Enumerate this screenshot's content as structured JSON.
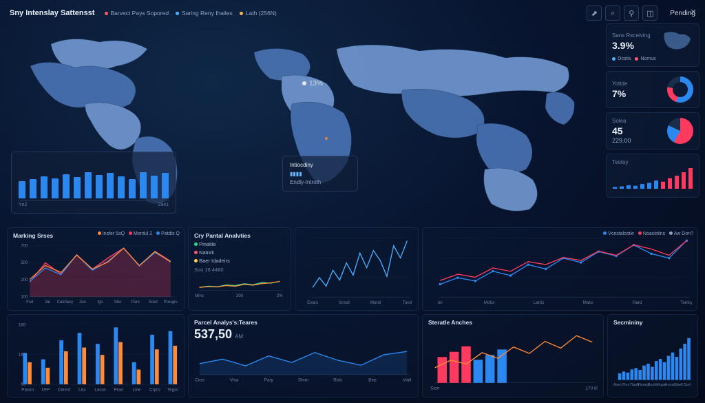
{
  "header": {
    "title": "Sny Intenslay Sattensst",
    "pills": [
      {
        "color": "#ff5a6e",
        "label": "Barvect Pays Sopored"
      },
      {
        "color": "#4bb0ff",
        "label": "Saring Reny Ihalles"
      },
      {
        "color": "#ffb347",
        "label": "Lath (256N)"
      }
    ]
  },
  "top_icons": [
    "⬈",
    "⌕",
    "⚲",
    "◫"
  ],
  "side_header": "Pending",
  "side_cards": [
    {
      "h": "Sans Receiving",
      "v": "3.9%",
      "tags": [
        {
          "c": "#4bb0ff",
          "t": "Ocstis"
        },
        {
          "c": "#ff5a6e",
          "t": "Nomus"
        }
      ],
      "mini_map": true
    },
    {
      "h": "Yottde",
      "v": "7%",
      "donut": {
        "c1": "#2b88f0",
        "a1": "55%",
        "c2": "#ff3a5e",
        "a2": "78%",
        "c3": "#1a2d4a"
      },
      "ring": true
    },
    {
      "h": "Solea",
      "v": "45",
      "v2": "229.00",
      "donut": {
        "c1": "#ff3a5e",
        "a1": "58%",
        "c2": "#2b88f0",
        "a2": "82%",
        "c3": "#1a2d4a"
      }
    },
    {
      "h": "Teotoy",
      "v": "",
      "spark_colors": [
        "#ff3a5e",
        "#2b88f0"
      ],
      "spark": [
        3,
        4,
        6,
        5,
        8,
        10,
        14,
        12,
        18,
        22,
        28,
        35
      ]
    }
  ],
  "floating_bar": {
    "values": [
      42,
      48,
      55,
      50,
      60,
      52,
      65,
      58,
      62,
      55,
      48,
      64,
      56,
      62
    ],
    "color": "#2b88f0",
    "labels": [
      "Yn2",
      "",
      "",
      "",
      "",
      "",
      "",
      "",
      "",
      "",
      "",
      "",
      "",
      "2941"
    ]
  },
  "ind_card": {
    "title": "Intiocdiny",
    "rows": [
      {
        "l": "Endly-Introth",
        "c": "#4bb0ff"
      },
      {
        "l": "",
        "c": ""
      }
    ]
  },
  "colors": {
    "blue": "#2b88f0",
    "red": "#ff3a5e",
    "orange": "#ff8a3a",
    "lightblue": "#6ab8ff",
    "darkblue": "#1a2d4a",
    "grid": "#1a2d4a",
    "text": "#8fa3c4"
  },
  "panels": {
    "marking": {
      "title": "Marking Srses",
      "legend": [
        {
          "c": "#ff8a3a",
          "t": "Insfer 5sQ"
        },
        {
          "c": "#ff3a5e",
          "t": "Mordul 2"
        },
        {
          "c": "#2b88f0",
          "t": "Patdis Q"
        }
      ],
      "ylabels": [
        "700",
        "500",
        "200",
        "100"
      ],
      "xlabels": [
        "Fsd",
        "Jal",
        "Catolasy",
        "Jun",
        "fgs",
        "Sho",
        "Pars",
        "Sowt",
        "Polugrs"
      ],
      "series": [
        {
          "c": "#ff3a5e",
          "fill": "rgba(255,58,94,.25)",
          "d": [
            180,
            420,
            280,
            520,
            340,
            480,
            600,
            380,
            560,
            440
          ]
        },
        {
          "c": "#2b88f0",
          "fill": "none",
          "d": [
            140,
            260,
            200,
            380,
            240,
            320,
            440,
            280,
            400,
            320
          ]
        },
        {
          "c": "#ff8a3a",
          "fill": "none",
          "d": [
            100,
            180,
            140,
            240,
            160,
            200,
            280,
            180,
            260,
            200
          ]
        }
      ]
    },
    "cry": {
      "title": "Cry Pantal Analvties",
      "items": [
        {
          "c": "#2edb8a",
          "t": "Pinakle"
        },
        {
          "c": "#ff5a6e",
          "t": "Natnrk"
        },
        {
          "c": "#ffd24b",
          "t": "Baer Idadeirs"
        }
      ],
      "sub": "Sou 16 4460",
      "xlabels": [
        "Mins",
        "200",
        "2%"
      ],
      "series": [
        {
          "c": "#2edb8a",
          "d": [
            100,
            140,
            120,
            180,
            160,
            220,
            190,
            260,
            240,
            300
          ]
        },
        {
          "c": "#ff8a3a",
          "d": [
            80,
            100,
            90,
            130,
            110,
            160,
            140,
            180,
            200,
            240
          ]
        }
      ]
    },
    "line1": {
      "xlabels": [
        "Exars",
        "Snodl",
        "Morol",
        "Torol"
      ],
      "c": "#4bb0ff",
      "d": [
        40,
        80,
        45,
        110,
        70,
        140,
        90,
        180,
        120,
        190,
        150,
        85,
        210,
        160,
        230
      ]
    },
    "line2": {
      "legend": [
        {
          "c": "#2b88f0",
          "t": "Vcestalostie"
        },
        {
          "c": "#ff3a5e",
          "t": "Noacistins"
        },
        {
          "c": "#8fa3c4",
          "t": "Aw Don?"
        }
      ],
      "xlabels": [
        "on",
        "Mofur",
        "Lants",
        "Maks",
        "Rard",
        "Tonloy"
      ],
      "series": [
        {
          "c": "#2b88f0",
          "d": [
            60,
            90,
            75,
            120,
            100,
            150,
            130,
            180,
            160,
            210,
            190,
            240,
            200,
            180,
            260
          ],
          "dots": true
        },
        {
          "c": "#ff3a5e",
          "d": [
            40,
            55,
            48,
            70,
            62,
            85,
            78,
            95,
            88,
            110,
            100,
            125,
            115,
            100,
            135
          ]
        }
      ]
    },
    "bars1": {
      "ylabels": [
        "180",
        "180",
        "60"
      ],
      "xlabels": [
        "Parsin",
        "UFF",
        "Cenrst",
        "Lira",
        "Lasos",
        "Prad",
        "Line",
        "Crpro",
        "Tegso"
      ],
      "groups": [
        {
          "c": "#2b88f0",
          "d": [
            85,
            68,
            120,
            140,
            110,
            155,
            60,
            135,
            145
          ]
        },
        {
          "c": "#ff8a3a",
          "d": [
            60,
            45,
            90,
            100,
            80,
            115,
            40,
            95,
            105
          ]
        }
      ]
    },
    "parcel": {
      "title": "Parcel Analys's:Teares",
      "value": "537,50",
      "suffix": "AM",
      "xlabels": [
        "Cors",
        "Visa",
        "Pary",
        "Shon",
        "Rols",
        "Bep",
        "Viall"
      ],
      "d": [
        100,
        140,
        80,
        170,
        110,
        200,
        130,
        85,
        180,
        210
      ]
    },
    "steratle": {
      "title": "Steratle Anches",
      "xlabels": [
        "Ston",
        "170 80"
      ],
      "bar_colors": [
        "#ff3a5e",
        "#ff3a5e",
        "#ff3a5e",
        "#2b88f0",
        "#2b88f0",
        "#2b88f0"
      ],
      "bars": [
        65,
        78,
        92,
        58,
        70,
        84
      ],
      "line": {
        "c": "#ff8a3a",
        "d": [
          40,
          60,
          50,
          80,
          65,
          95,
          78,
          110,
          92,
          125,
          108
        ]
      }
    },
    "secondary": {
      "title": "Secmininy",
      "xlabels": [
        "Moen",
        "Thry",
        "Tlash",
        "Fisney",
        "Boch",
        "Mups",
        "Honst",
        "Shell",
        "Dorl"
      ],
      "c": "#2b88f0",
      "d": [
        25,
        32,
        28,
        40,
        45,
        38,
        55,
        62,
        50,
        72,
        80,
        68,
        92,
        105,
        88,
        120,
        138,
        160
      ]
    }
  }
}
